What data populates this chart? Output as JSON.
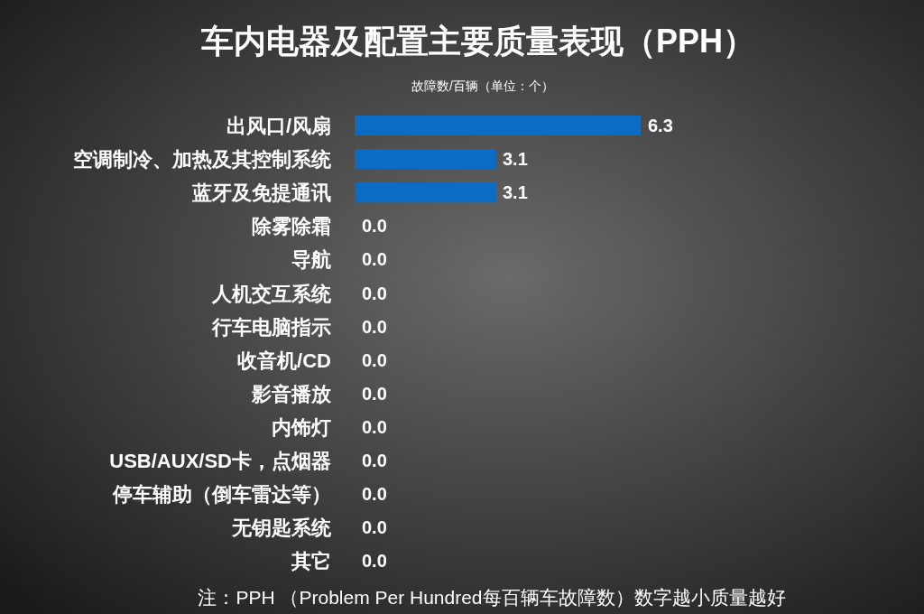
{
  "chart_data": {
    "type": "bar",
    "orientation": "horizontal",
    "title": "车内电器及配置主要质量表现（PPH）",
    "subtitle": "故障数/百辆（单位：个）",
    "categories": [
      "出风口/风扇",
      "空调制冷、加热及其控制系统",
      "蓝牙及免提通讯",
      "除雾除霜",
      "导航",
      "人机交互系统",
      "行车电脑指示",
      "收音机/CD",
      "影音播放",
      "内饰灯",
      "USB/AUX/SD卡，点烟器",
      "停车辅助（倒车雷达等）",
      "无钥匙系统",
      "其它"
    ],
    "values": [
      6.3,
      3.1,
      3.1,
      0,
      0,
      0,
      0,
      0,
      0,
      0,
      0,
      0,
      0,
      0
    ],
    "value_labels": [
      "6.3",
      "3.1",
      "3.1",
      "0.0",
      "0.0",
      "0.0",
      "0.0",
      "0.0",
      "0.0",
      "0.0",
      "0.0",
      "0.0",
      "0.0",
      "0.0"
    ],
    "color": "#0a6cc2",
    "annotations": [
      "注：PPH （Problem Per Hundred每百辆车故障数）数字越小质量越好"
    ]
  }
}
